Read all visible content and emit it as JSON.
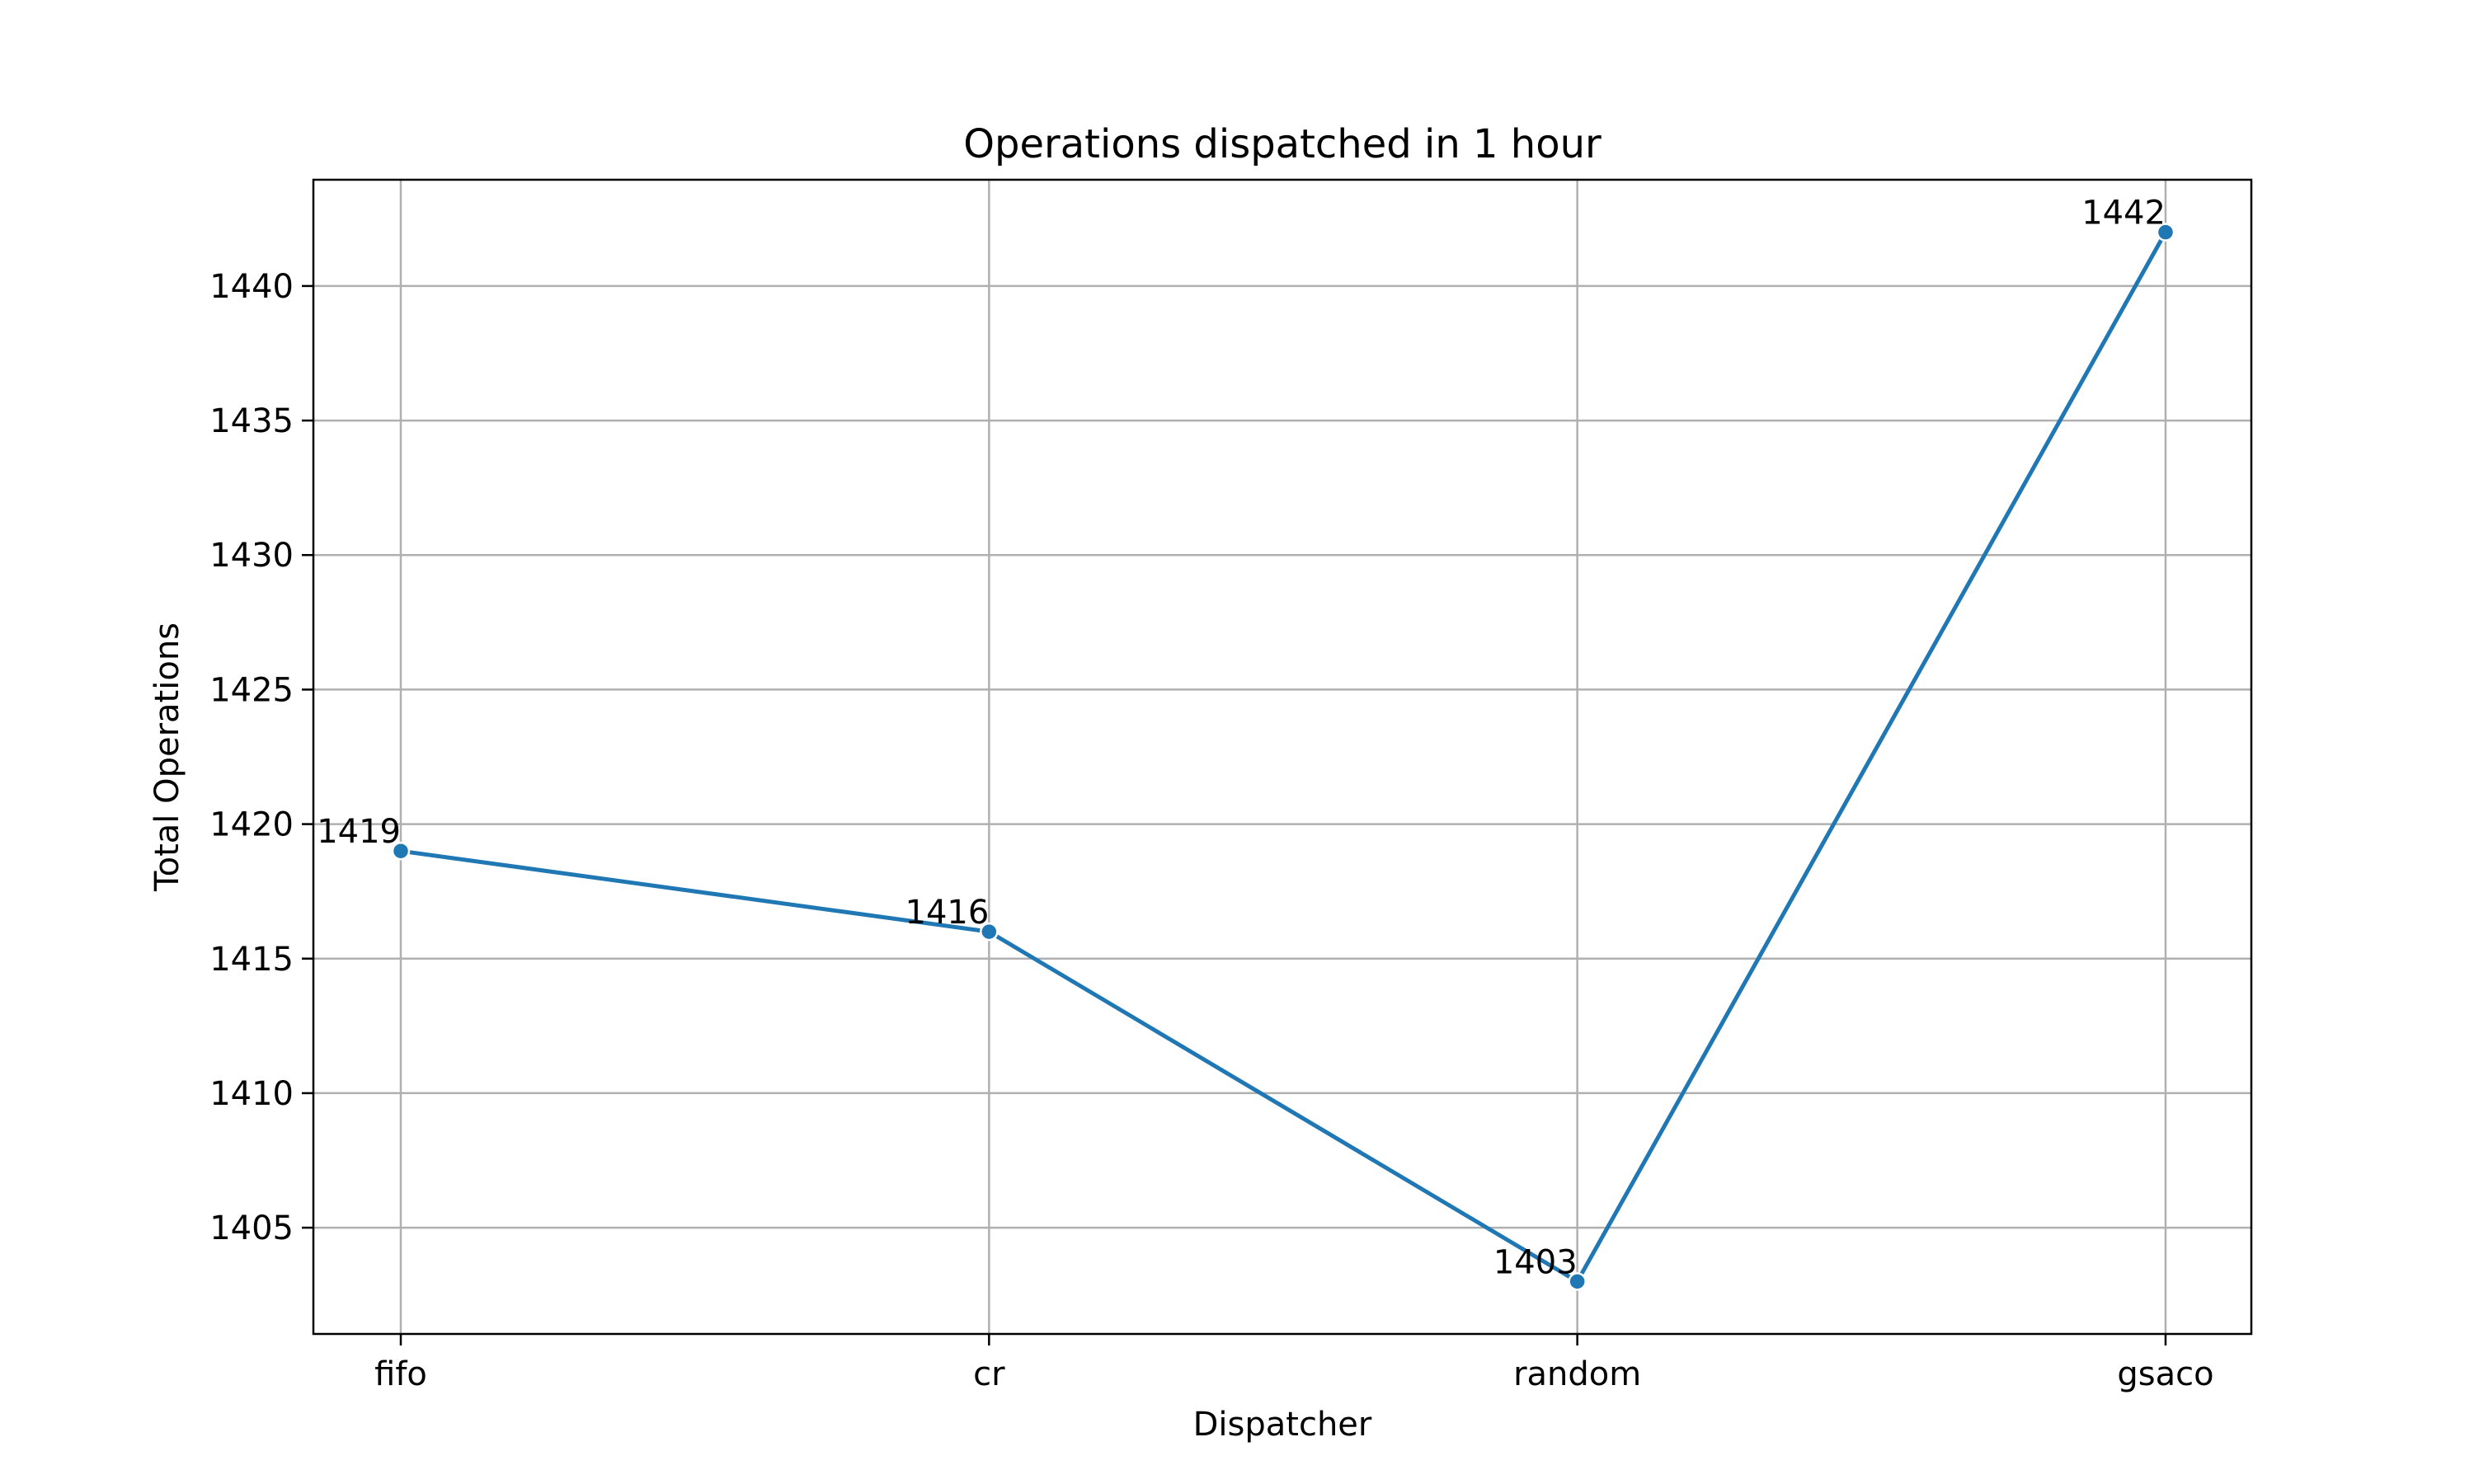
{
  "chart_data": {
    "type": "line",
    "title": "Operations dispatched in 1 hour",
    "xlabel": "Dispatcher",
    "ylabel": "Total Operations",
    "categories": [
      "fifo",
      "cr",
      "random",
      "gsaco"
    ],
    "series": [
      {
        "values": [
          1419,
          1416,
          1403,
          1442
        ],
        "color": "#1f77b4"
      }
    ],
    "data_labels": [
      "1419",
      "1416",
      "1403",
      "1442"
    ],
    "y_ticks": [
      1405,
      1410,
      1415,
      1420,
      1425,
      1430,
      1435,
      1440
    ],
    "y_tick_labels": [
      "1405",
      "1410",
      "1415",
      "1420",
      "1425",
      "1430",
      "1435",
      "1440"
    ],
    "ylim": [
      1401.05,
      1443.95
    ],
    "grid": true,
    "legend": "none"
  }
}
